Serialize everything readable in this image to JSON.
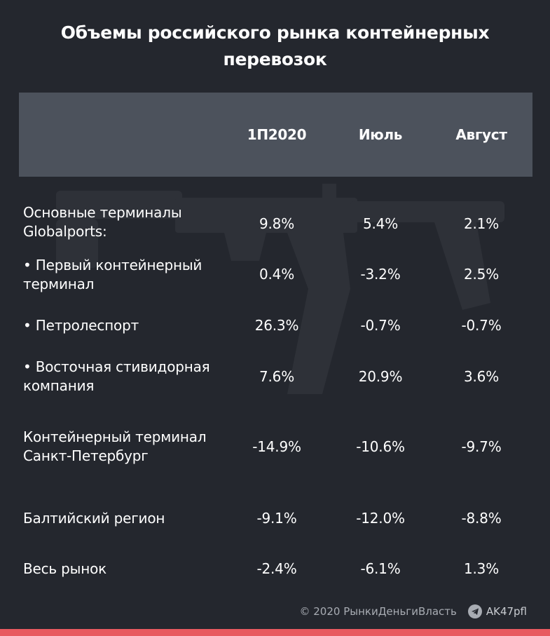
{
  "title": "Объемы российского рынка контейнерных перевозок",
  "columns": [
    "1П2020",
    "Июль",
    "Август"
  ],
  "rows": [
    {
      "label": "Основные терминалы Globalports:",
      "values": [
        "9.8%",
        "5.4%",
        "2.1%"
      ]
    },
    {
      "label": "• Первый контейнерный терминал",
      "values": [
        "0.4%",
        "-3.2%",
        "2.5%"
      ]
    },
    {
      "label": "• Петролеспорт",
      "values": [
        "26.3%",
        "-0.7%",
        "-0.7%"
      ]
    },
    {
      "label": "• Восточная стивидорная компания",
      "values": [
        "7.6%",
        "20.9%",
        "3.6%"
      ]
    },
    {
      "label": "Контейнерный терминал Санкт-Петербург",
      "values": [
        "-14.9%",
        "-10.6%",
        "-9.7%"
      ]
    },
    {
      "label": "Балтийский регион",
      "values": [
        "-9.1%",
        "-12.0%",
        "-8.8%"
      ]
    },
    {
      "label": "Весь рынок",
      "values": [
        "-2.4%",
        "-6.1%",
        "1.3%"
      ]
    }
  ],
  "footer": {
    "copyright": "© 2020  РынкиДеньгиВласть",
    "icon": "telegram-icon",
    "handle": "AK47pfl"
  },
  "colors": {
    "background": "#24272e",
    "header_band": "#4c525c",
    "accent_bar": "#e85a60"
  }
}
